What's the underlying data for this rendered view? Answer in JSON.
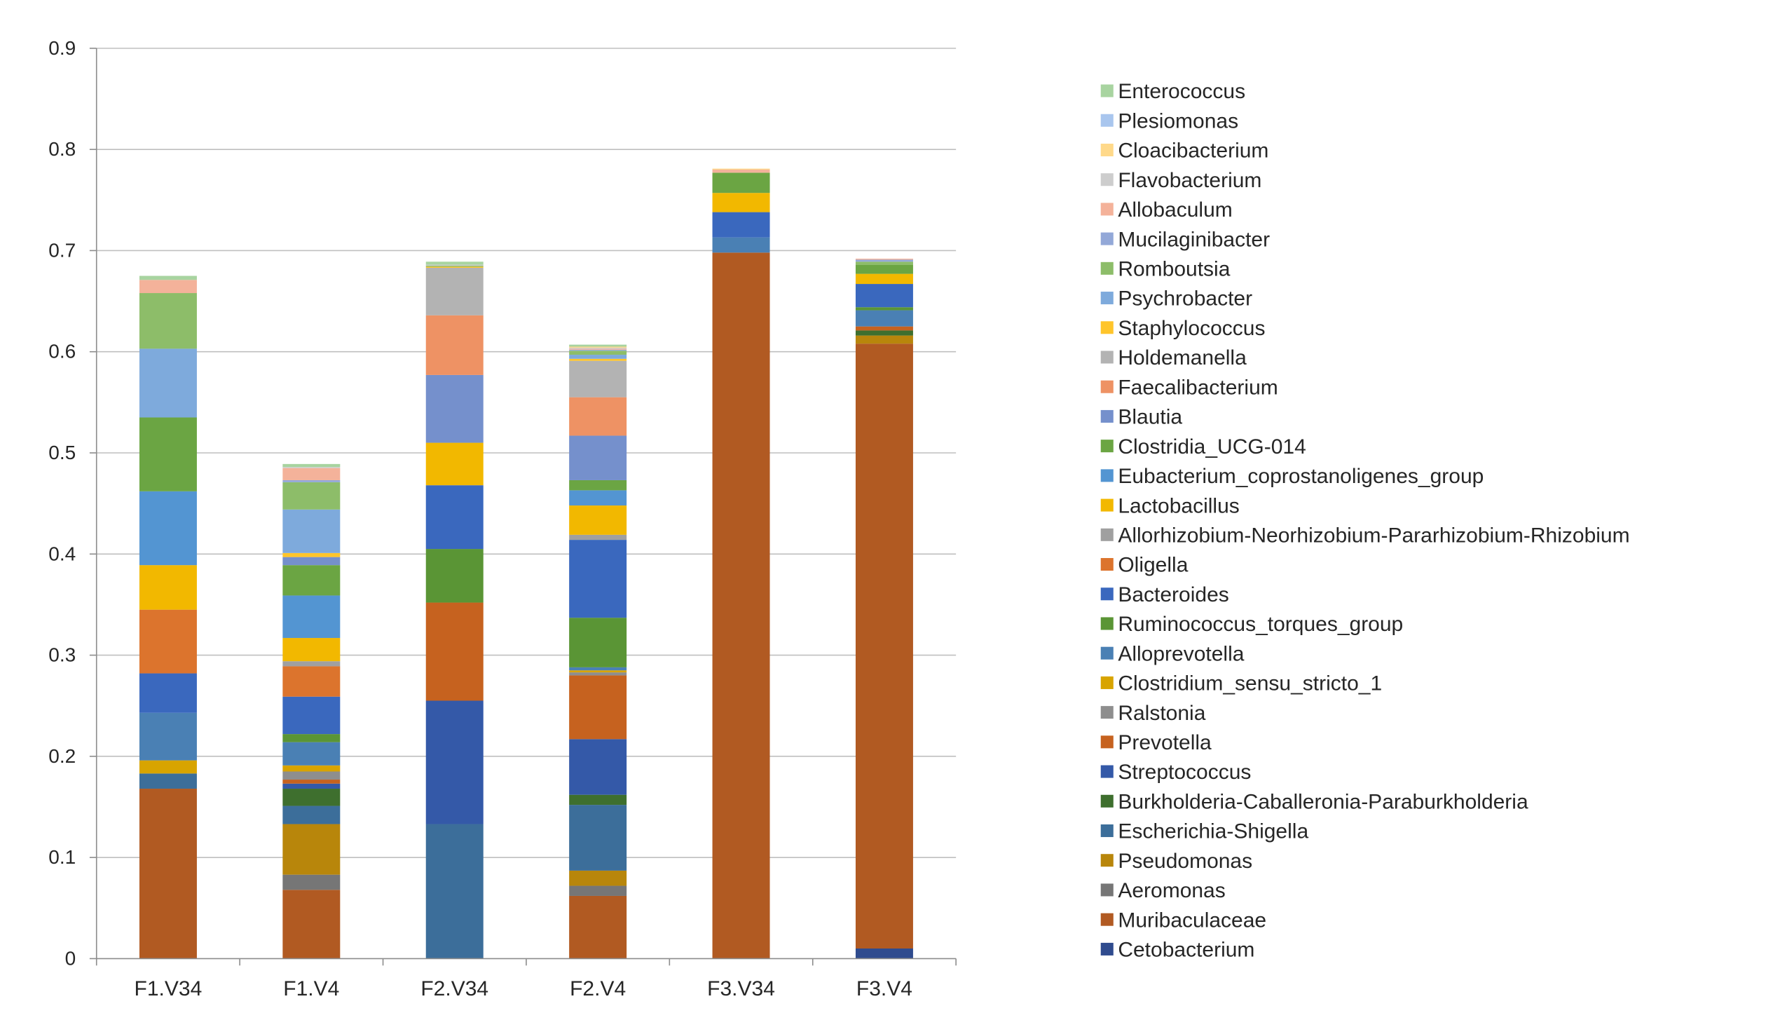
{
  "chart_data": {
    "type": "bar",
    "stacked": true,
    "title": "",
    "xlabel": "",
    "ylabel": "",
    "ylim": [
      0,
      0.9
    ],
    "yticks": [
      0,
      0.1,
      0.2,
      0.3,
      0.4,
      0.5,
      0.6,
      0.7,
      0.8,
      0.9
    ],
    "ytick_labels": [
      "0",
      "0.1",
      "0.2",
      "0.3",
      "0.4",
      "0.5",
      "0.6",
      "0.7",
      "0.8",
      "0.9"
    ],
    "grid": true,
    "legend_position": "right",
    "categories": [
      "F1.V34",
      "F1.V4",
      "F2.V34",
      "F2.V4",
      "F3.V34",
      "F3.V4"
    ],
    "series": [
      {
        "name": "Cetobacterium",
        "color": "#2F4B8E",
        "values": [
          0,
          0,
          0,
          0,
          0,
          0.01
        ]
      },
      {
        "name": "Muribaculaceae",
        "color": "#B15A22",
        "values": [
          0.168,
          0.068,
          0,
          0.062,
          0.698,
          0.598
        ]
      },
      {
        "name": "Aeromonas",
        "color": "#767676",
        "values": [
          0,
          0.015,
          0,
          0.01,
          0,
          0
        ]
      },
      {
        "name": "Pseudomonas",
        "color": "#B8860B",
        "values": [
          0,
          0.05,
          0,
          0.015,
          0,
          0.008
        ]
      },
      {
        "name": "Escherichia-Shigella",
        "color": "#3C6E9A",
        "values": [
          0.015,
          0.018,
          0.133,
          0.065,
          0,
          0
        ]
      },
      {
        "name": "Burkholderia-Caballeronia-Paraburkholderia",
        "color": "#3E6F2E",
        "values": [
          0,
          0.017,
          0,
          0.01,
          0,
          0.005
        ]
      },
      {
        "name": "Streptococcus",
        "color": "#3459A8",
        "values": [
          0,
          0.005,
          0.122,
          0.055,
          0,
          0
        ]
      },
      {
        "name": "Prevotella",
        "color": "#C6621F",
        "values": [
          0,
          0.004,
          0.097,
          0.063,
          0,
          0.004
        ]
      },
      {
        "name": "Ralstonia",
        "color": "#8E8E8E",
        "values": [
          0,
          0.008,
          0,
          0.003,
          0,
          0
        ]
      },
      {
        "name": "Clostridium_sensu_stricto_1",
        "color": "#D8A400",
        "values": [
          0.013,
          0.006,
          0,
          0.002,
          0,
          0
        ]
      },
      {
        "name": "Alloprevotella",
        "color": "#4A80B4",
        "values": [
          0.047,
          0.023,
          0,
          0.003,
          0.015,
          0.016
        ]
      },
      {
        "name": "Ruminococcus_torques_group",
        "color": "#5A9535",
        "values": [
          0,
          0.008,
          0.053,
          0.049,
          0,
          0.003
        ]
      },
      {
        "name": "Bacteroides",
        "color": "#3A68BE",
        "values": [
          0.039,
          0.037,
          0.063,
          0.077,
          0.025,
          0.023
        ]
      },
      {
        "name": "Oligella",
        "color": "#DC742D",
        "values": [
          0.063,
          0.03,
          0,
          0,
          0,
          0
        ]
      },
      {
        "name": "Allorhizobium-Neorhizobium-Pararhizobium-Rhizobium",
        "color": "#A0A0A0",
        "values": [
          0,
          0.005,
          0,
          0.005,
          0,
          0
        ]
      },
      {
        "name": "Lactobacillus",
        "color": "#F2B800",
        "values": [
          0.044,
          0.023,
          0.042,
          0.029,
          0.019,
          0.01
        ]
      },
      {
        "name": "Eubacterium_coprostanoligenes_group",
        "color": "#5395D2",
        "values": [
          0.073,
          0.042,
          0,
          0.015,
          0,
          0
        ]
      },
      {
        "name": "Clostridia_UCG-014",
        "color": "#6BA543",
        "values": [
          0.073,
          0.03,
          0,
          0.01,
          0.02,
          0.009
        ]
      },
      {
        "name": "Blautia",
        "color": "#7590CC",
        "values": [
          0,
          0.008,
          0.067,
          0.044,
          0,
          0
        ]
      },
      {
        "name": "Faecalibacterium",
        "color": "#EE9264",
        "values": [
          0,
          0,
          0.059,
          0.038,
          0,
          0
        ]
      },
      {
        "name": "Holdemanella",
        "color": "#B3B3B3",
        "values": [
          0,
          0,
          0.047,
          0.036,
          0,
          0
        ]
      },
      {
        "name": "Staphylococcus",
        "color": "#FFC52B",
        "values": [
          0,
          0.004,
          0.001,
          0.002,
          0,
          0
        ]
      },
      {
        "name": "Psychrobacter",
        "color": "#7EAADC",
        "values": [
          0.068,
          0.043,
          0,
          0.004,
          0,
          0
        ]
      },
      {
        "name": "Romboutsia",
        "color": "#8DBD69",
        "values": [
          0.055,
          0.027,
          0.001,
          0.004,
          0,
          0.003
        ]
      },
      {
        "name": "Mucilaginibacter",
        "color": "#93A8D8",
        "values": [
          0,
          0.002,
          0,
          0.001,
          0,
          0.002
        ]
      },
      {
        "name": "Allobaculum",
        "color": "#F4B29A",
        "values": [
          0.013,
          0.012,
          0,
          0.001,
          0.003,
          0.001
        ]
      },
      {
        "name": "Flavobacterium",
        "color": "#CDCDCD",
        "values": [
          0,
          0.001,
          0.001,
          0.001,
          0,
          0
        ]
      },
      {
        "name": "Cloacibacterium",
        "color": "#FFD98A",
        "values": [
          0,
          0,
          0,
          0.001,
          0.001,
          0
        ]
      },
      {
        "name": "Plesiomonas",
        "color": "#A9C6EE",
        "values": [
          0,
          0,
          0,
          0,
          0,
          0
        ]
      },
      {
        "name": "Enterococcus",
        "color": "#A8D4A0",
        "values": [
          0.004,
          0.003,
          0.003,
          0.002,
          0,
          0
        ]
      }
    ]
  }
}
